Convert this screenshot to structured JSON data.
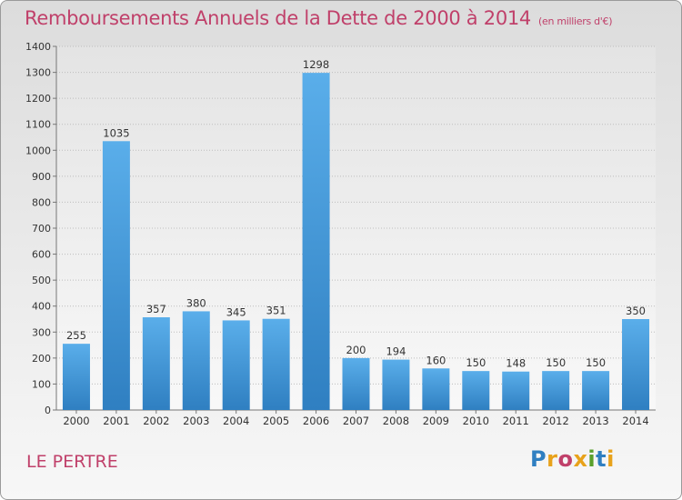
{
  "title": "Remboursements Annuels de la Dette de 2000 à 2014",
  "unit": "(en milliers d'€)",
  "commune": "LE PERTRE",
  "brand": {
    "name": "Proxiti",
    "letter_colors": [
      "#2f7fc1",
      "#e8a21b",
      "#c0406a",
      "#e8a21b",
      "#5aa02c",
      "#2f7fc1",
      "#e8a21b"
    ]
  },
  "colors": {
    "bar_light": "#5aaeea",
    "bar_dark": "#2f7fc1",
    "title": "#c0406a"
  },
  "chart_data": {
    "type": "bar",
    "categories": [
      "2000",
      "2001",
      "2002",
      "2003",
      "2004",
      "2005",
      "2006",
      "2007",
      "2008",
      "2009",
      "2010",
      "2011",
      "2012",
      "2013",
      "2014"
    ],
    "values": [
      255,
      1035,
      357,
      380,
      345,
      351,
      1298,
      200,
      194,
      160,
      150,
      148,
      150,
      150,
      350
    ],
    "ylim": [
      0,
      1400
    ],
    "yticks": [
      0,
      100,
      200,
      300,
      400,
      500,
      600,
      700,
      800,
      900,
      1000,
      1100,
      1200,
      1300,
      1400
    ],
    "grid": true
  }
}
